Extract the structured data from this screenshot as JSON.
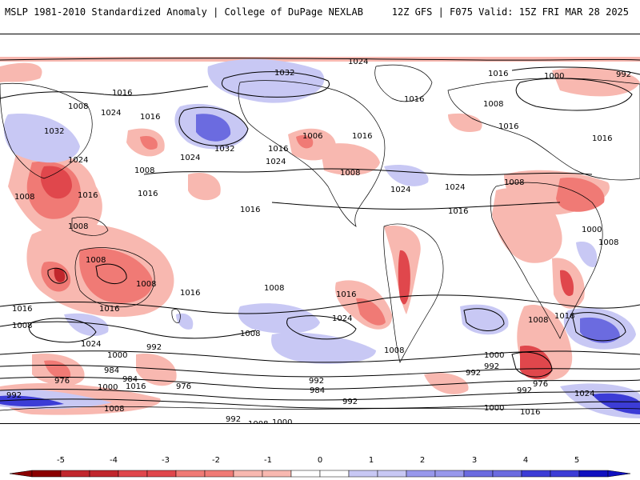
{
  "header": {
    "title_left": "MSLP 1981-2010 Standardized Anomaly | College of DuPage NEXLAB",
    "title_right": "12Z GFS | F075 Valid: 15Z FRI MAR 28 2025"
  },
  "colors": {
    "neg5": "#8b0000",
    "neg4": "#c1272d",
    "neg3": "#e0474c",
    "neg2": "#f07a75",
    "neg1": "#f8b8b0",
    "zero": "#ffffff",
    "pos1": "#c8c8f4",
    "pos2": "#9898ec",
    "pos3": "#6b6be0",
    "pos4": "#3c3cd6",
    "pos5": "#1010c0",
    "contour": "#000000",
    "land": "#ffffff"
  },
  "colorbar": {
    "ticks": [
      "-5",
      "-4",
      "-3",
      "-2",
      "-1",
      "0",
      "1",
      "2",
      "3",
      "4",
      "5"
    ]
  },
  "isobar_labels": [
    "1024",
    "1032",
    "1016",
    "1000",
    "992",
    "1008",
    "1024",
    "1016",
    "1016",
    "1008",
    "1016",
    "1032",
    "1006",
    "1016",
    "1024",
    "1008",
    "1024",
    "1016",
    "1016",
    "1008",
    "1032",
    "1024",
    "1008",
    "1008",
    "1016",
    "1016",
    "1024",
    "1016",
    "1016",
    "1008",
    "1024",
    "1016",
    "1008",
    "1000",
    "1008",
    "1016",
    "1008",
    "1008",
    "1016",
    "1008",
    "1016",
    "1024",
    "1016",
    "1008",
    "1000",
    "992",
    "1008",
    "1024",
    "984",
    "992",
    "976",
    "1000",
    "984",
    "976",
    "1016",
    "992",
    "992",
    "984",
    "1000",
    "976",
    "992",
    "992",
    "1024",
    "992",
    "1016",
    "1008",
    "1000",
    "1000",
    "992",
    "1008",
    "1008",
    "1016"
  ]
}
